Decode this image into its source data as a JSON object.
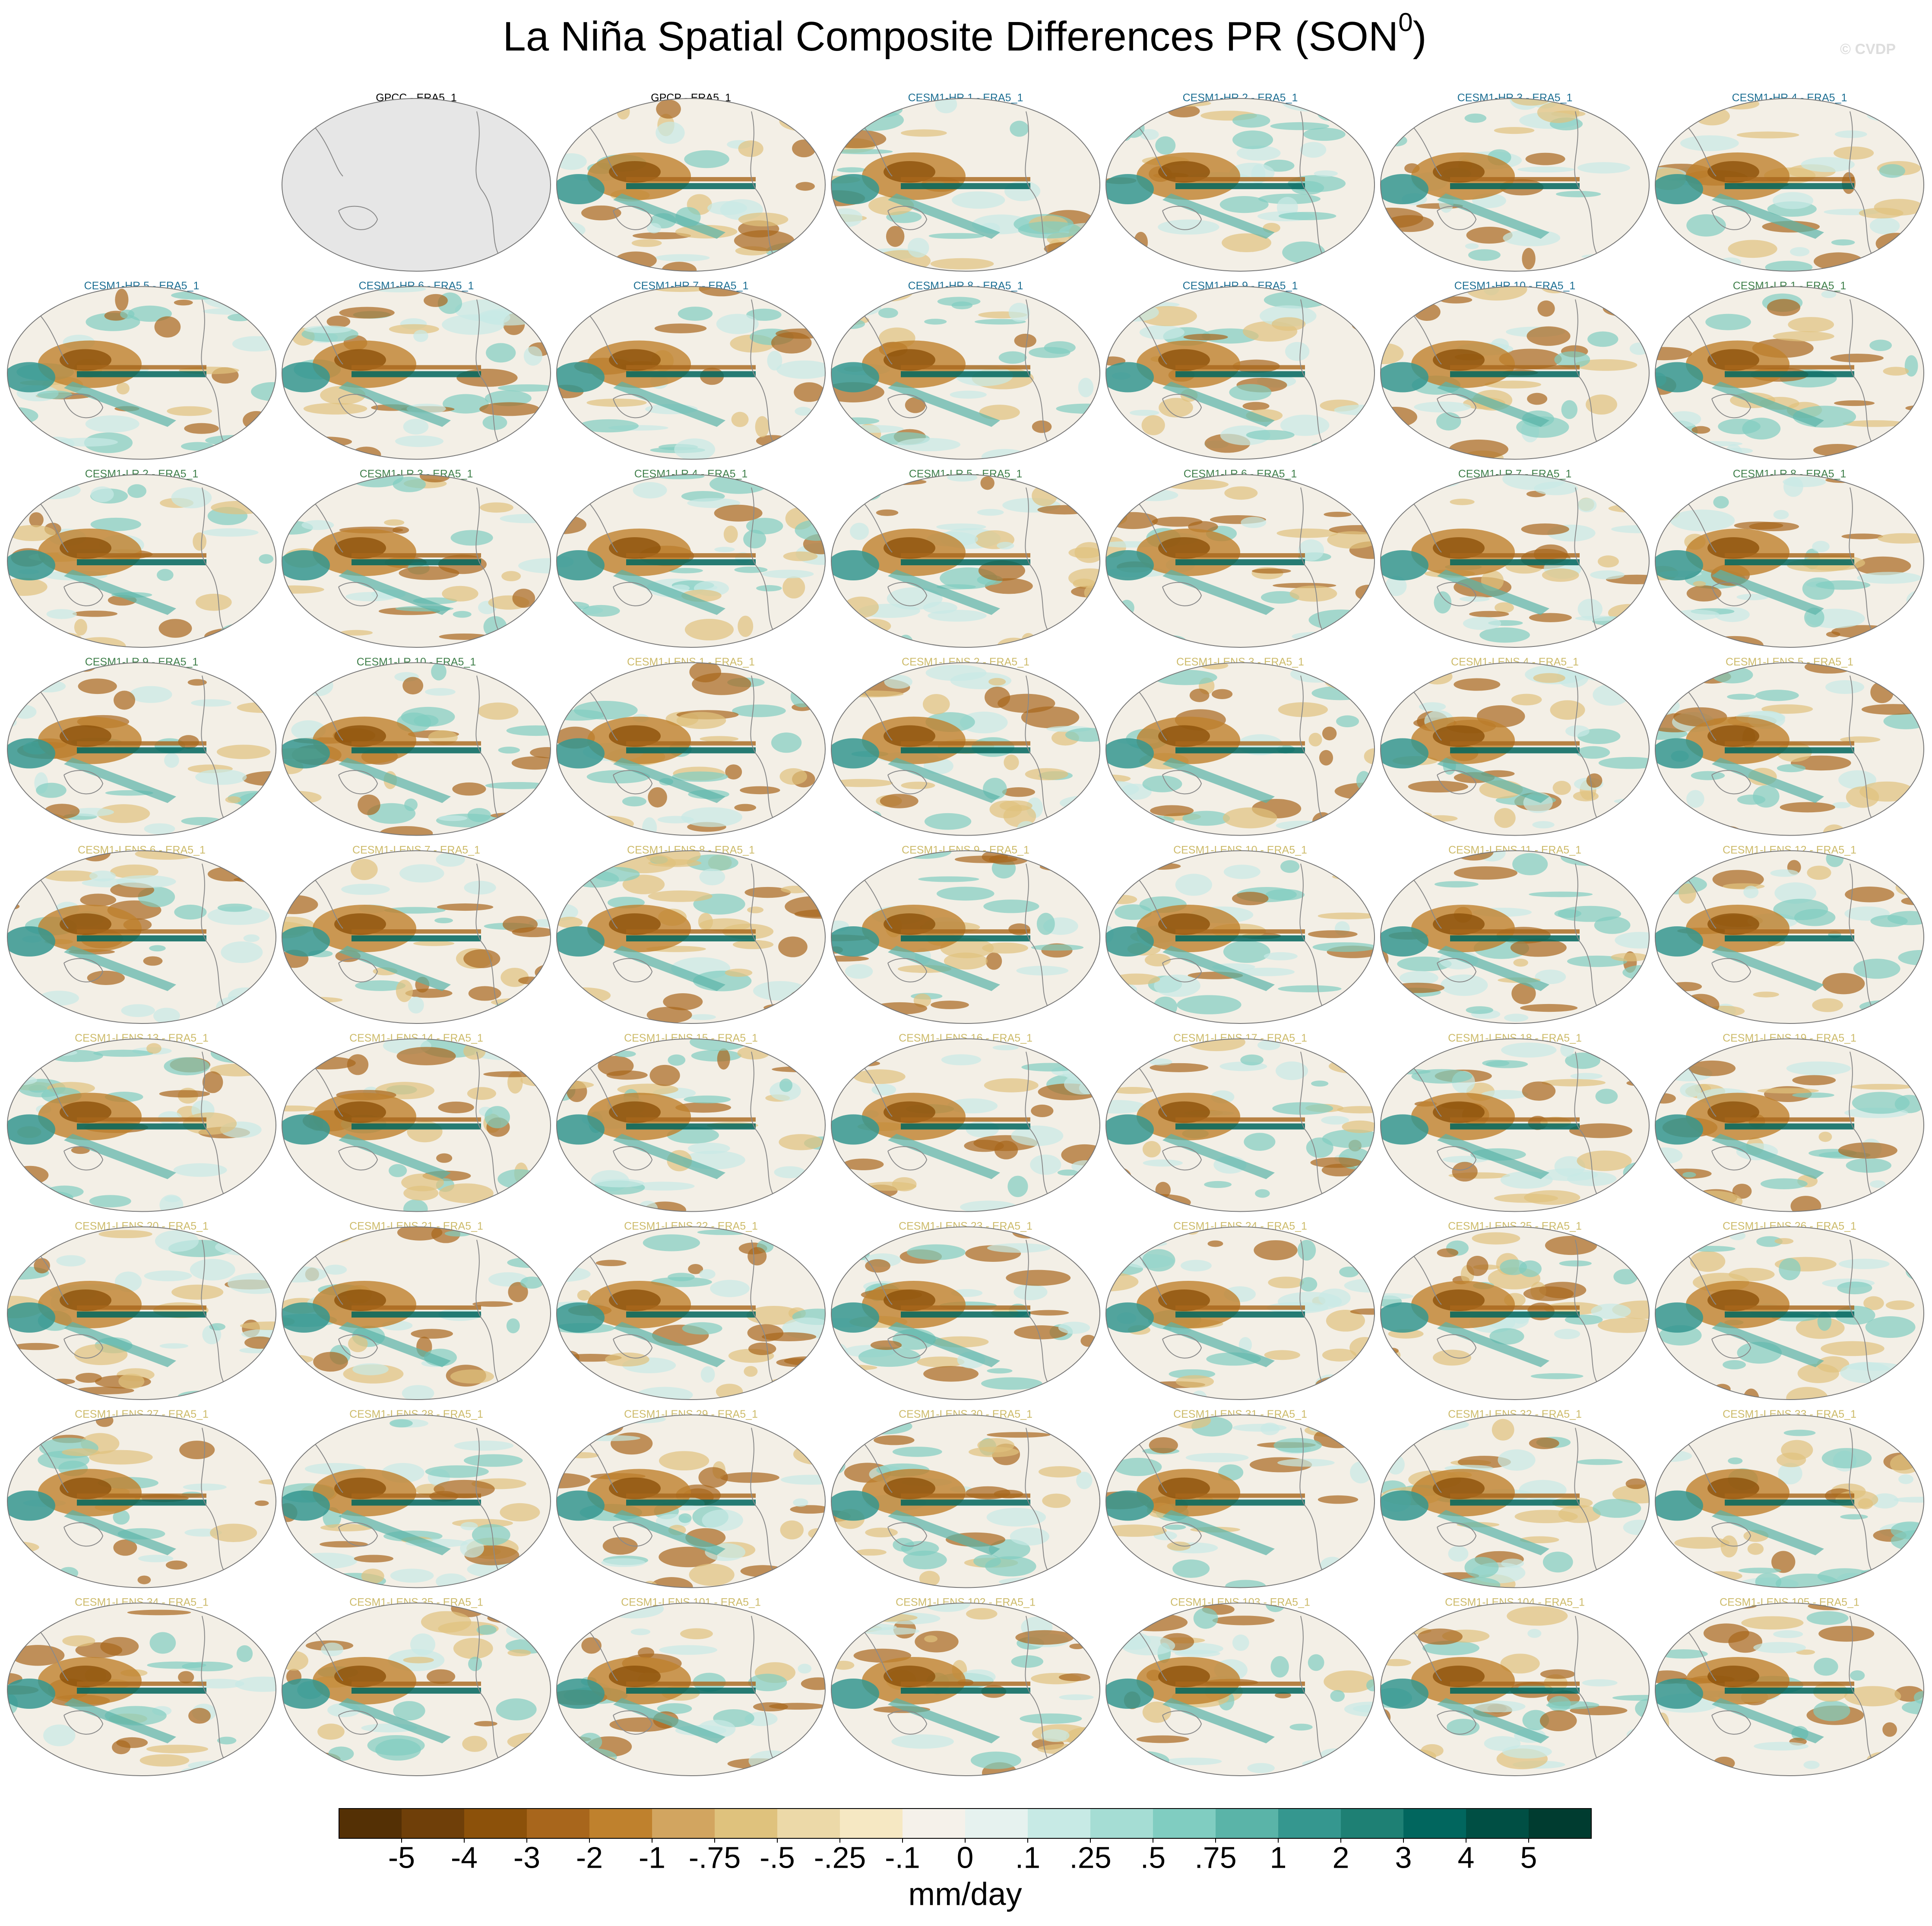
{
  "chart_data": {
    "type": "map-panels",
    "title": {
      "text": "La Niña Spatial Composite Differences PR (SON",
      "superscript": "0",
      "suffix": ")"
    },
    "watermark": "© CVDP",
    "panels": [
      {
        "title": "GPCC - ERA5_1",
        "title_color": "#000000",
        "map_color": "#e6e6e6"
      },
      {
        "title": "GPCP - ERA5_1",
        "title_color": "#000000",
        "map_color": "#f3efe6"
      },
      {
        "title": "CESM1-HR 1 - ERA5_1",
        "title_color": "#1d6f93",
        "map_color": "#f3efe6"
      },
      {
        "title": "CESM1-HR 2 - ERA5_1",
        "title_color": "#1d6f93",
        "map_color": "#f3efe6"
      },
      {
        "title": "CESM1-HR 3 - ERA5_1",
        "title_color": "#1d6f93",
        "map_color": "#f3efe6"
      },
      {
        "title": "CESM1-HR 4 - ERA5_1",
        "title_color": "#1d6f93",
        "map_color": "#f3efe6"
      },
      {
        "title": "CESM1-HR 5 - ERA5_1",
        "title_color": "#1d6f93",
        "map_color": "#f3efe6"
      },
      {
        "title": "CESM1-HR 6 - ERA5_1",
        "title_color": "#1d6f93",
        "map_color": "#f3efe6"
      },
      {
        "title": "CESM1-HR 7 - ERA5_1",
        "title_color": "#1d6f93",
        "map_color": "#f3efe6"
      },
      {
        "title": "CESM1-HR 8 - ERA5_1",
        "title_color": "#1d6f93",
        "map_color": "#f3efe6"
      },
      {
        "title": "CESM1-HR 9 - ERA5_1",
        "title_color": "#1d6f93",
        "map_color": "#f3efe6"
      },
      {
        "title": "CESM1-HR 10 - ERA5_1",
        "title_color": "#1d6f93",
        "map_color": "#f3efe6"
      },
      {
        "title": "CESM1-LR 1 - ERA5_1",
        "title_color": "#3f7f4a",
        "map_color": "#f3efe6"
      },
      {
        "title": "CESM1-LR 2 - ERA5_1",
        "title_color": "#3f7f4a",
        "map_color": "#f3efe6"
      },
      {
        "title": "CESM1-LR 3 - ERA5_1",
        "title_color": "#3f7f4a",
        "map_color": "#f3efe6"
      },
      {
        "title": "CESM1-LR 4 - ERA5_1",
        "title_color": "#3f7f4a",
        "map_color": "#f3efe6"
      },
      {
        "title": "CESM1-LR 5 - ERA5_1",
        "title_color": "#3f7f4a",
        "map_color": "#f3efe6"
      },
      {
        "title": "CESM1-LR 6 - ERA5_1",
        "title_color": "#3f7f4a",
        "map_color": "#f3efe6"
      },
      {
        "title": "CESM1-LR 7 - ERA5_1",
        "title_color": "#3f7f4a",
        "map_color": "#f3efe6"
      },
      {
        "title": "CESM1-LR 8 - ERA5_1",
        "title_color": "#3f7f4a",
        "map_color": "#f3efe6"
      },
      {
        "title": "CESM1-LR 9 - ERA5_1",
        "title_color": "#3f7f4a",
        "map_color": "#f3efe6"
      },
      {
        "title": "CESM1-LR 10 - ERA5_1",
        "title_color": "#3f7f4a",
        "map_color": "#f3efe6"
      },
      {
        "title": "CESM1-LENS 1 - ERA5_1",
        "title_color": "#cdbb6a",
        "map_color": "#f3efe6"
      },
      {
        "title": "CESM1-LENS 2 - ERA5_1",
        "title_color": "#cdbb6a",
        "map_color": "#f3efe6"
      },
      {
        "title": "CESM1-LENS 3 - ERA5_1",
        "title_color": "#cdbb6a",
        "map_color": "#f3efe6"
      },
      {
        "title": "CESM1-LENS 4 - ERA5_1",
        "title_color": "#cdbb6a",
        "map_color": "#f3efe6"
      },
      {
        "title": "CESM1-LENS 5 - ERA5_1",
        "title_color": "#cdbb6a",
        "map_color": "#f3efe6"
      },
      {
        "title": "CESM1-LENS 6 - ERA5_1",
        "title_color": "#cdbb6a",
        "map_color": "#f3efe6"
      },
      {
        "title": "CESM1-LENS 7 - ERA5_1",
        "title_color": "#cdbb6a",
        "map_color": "#f3efe6"
      },
      {
        "title": "CESM1-LENS 8 - ERA5_1",
        "title_color": "#cdbb6a",
        "map_color": "#f3efe6"
      },
      {
        "title": "CESM1-LENS 9 - ERA5_1",
        "title_color": "#cdbb6a",
        "map_color": "#f3efe6"
      },
      {
        "title": "CESM1-LENS 10 - ERA5_1",
        "title_color": "#cdbb6a",
        "map_color": "#f3efe6"
      },
      {
        "title": "CESM1-LENS 11 - ERA5_1",
        "title_color": "#cdbb6a",
        "map_color": "#f3efe6"
      },
      {
        "title": "CESM1-LENS 12 - ERA5_1",
        "title_color": "#cdbb6a",
        "map_color": "#f3efe6"
      },
      {
        "title": "CESM1-LENS 13 - ERA5_1",
        "title_color": "#cdbb6a",
        "map_color": "#f3efe6"
      },
      {
        "title": "CESM1-LENS 14 - ERA5_1",
        "title_color": "#cdbb6a",
        "map_color": "#f3efe6"
      },
      {
        "title": "CESM1-LENS 15 - ERA5_1",
        "title_color": "#cdbb6a",
        "map_color": "#f3efe6"
      },
      {
        "title": "CESM1-LENS 16 - ERA5_1",
        "title_color": "#cdbb6a",
        "map_color": "#f3efe6"
      },
      {
        "title": "CESM1-LENS 17 - ERA5_1",
        "title_color": "#cdbb6a",
        "map_color": "#f3efe6"
      },
      {
        "title": "CESM1-LENS 18 - ERA5_1",
        "title_color": "#cdbb6a",
        "map_color": "#f3efe6"
      },
      {
        "title": "CESM1-LENS 19 - ERA5_1",
        "title_color": "#cdbb6a",
        "map_color": "#f3efe6"
      },
      {
        "title": "CESM1-LENS 20 - ERA5_1",
        "title_color": "#cdbb6a",
        "map_color": "#f3efe6"
      },
      {
        "title": "CESM1-LENS 21 - ERA5_1",
        "title_color": "#cdbb6a",
        "map_color": "#f3efe6"
      },
      {
        "title": "CESM1-LENS 22 - ERA5_1",
        "title_color": "#cdbb6a",
        "map_color": "#f3efe6"
      },
      {
        "title": "CESM1-LENS 23 - ERA5_1",
        "title_color": "#cdbb6a",
        "map_color": "#f3efe6"
      },
      {
        "title": "CESM1-LENS 24 - ERA5_1",
        "title_color": "#cdbb6a",
        "map_color": "#f3efe6"
      },
      {
        "title": "CESM1-LENS 25 - ERA5_1",
        "title_color": "#cdbb6a",
        "map_color": "#f3efe6"
      },
      {
        "title": "CESM1-LENS 26 - ERA5_1",
        "title_color": "#cdbb6a",
        "map_color": "#f3efe6"
      },
      {
        "title": "CESM1-LENS 27 - ERA5_1",
        "title_color": "#cdbb6a",
        "map_color": "#f3efe6"
      },
      {
        "title": "CESM1-LENS 28 - ERA5_1",
        "title_color": "#cdbb6a",
        "map_color": "#f3efe6"
      },
      {
        "title": "CESM1-LENS 29 - ERA5_1",
        "title_color": "#cdbb6a",
        "map_color": "#f3efe6"
      },
      {
        "title": "CESM1-LENS 30 - ERA5_1",
        "title_color": "#cdbb6a",
        "map_color": "#f3efe6"
      },
      {
        "title": "CESM1-LENS 31 - ERA5_1",
        "title_color": "#cdbb6a",
        "map_color": "#f3efe6"
      },
      {
        "title": "CESM1-LENS 32 - ERA5_1",
        "title_color": "#cdbb6a",
        "map_color": "#f3efe6"
      },
      {
        "title": "CESM1-LENS 33 - ERA5_1",
        "title_color": "#cdbb6a",
        "map_color": "#f3efe6"
      },
      {
        "title": "CESM1-LENS 34 - ERA5_1",
        "title_color": "#cdbb6a",
        "map_color": "#f3efe6"
      },
      {
        "title": "CESM1-LENS 35 - ERA5_1",
        "title_color": "#cdbb6a",
        "map_color": "#f3efe6"
      },
      {
        "title": "CESM1-LENS 101 - ERA5_1",
        "title_color": "#cdbb6a",
        "map_color": "#f3efe6"
      },
      {
        "title": "CESM1-LENS 102 - ERA5_1",
        "title_color": "#cdbb6a",
        "map_color": "#f3efe6"
      },
      {
        "title": "CESM1-LENS 103 - ERA5_1",
        "title_color": "#cdbb6a",
        "map_color": "#f3efe6"
      },
      {
        "title": "CESM1-LENS 104 - ERA5_1",
        "title_color": "#cdbb6a",
        "map_color": "#f3efe6"
      },
      {
        "title": "CESM1-LENS 105 - ERA5_1",
        "title_color": "#cdbb6a",
        "map_color": "#f3efe6"
      }
    ],
    "colorbar": {
      "label": "mm/day",
      "colors": [
        "#543005",
        "#6f3f09",
        "#8c510a",
        "#a8661c",
        "#bf812d",
        "#d2a560",
        "#dfc27d",
        "#ecd9a8",
        "#f6e8c3",
        "#f5f1ea",
        "#e6f2ef",
        "#c7eae5",
        "#a5ddd4",
        "#80cdc1",
        "#5ab4a8",
        "#35978f",
        "#1e8074",
        "#01665e",
        "#004f44",
        "#003c30"
      ],
      "ticks": [
        -5,
        -4,
        -3,
        -2,
        -1,
        {
          "value": -0.75,
          "label": "-.75"
        },
        {
          "value": -0.5,
          "label": "-.5"
        },
        {
          "value": -0.25,
          "label": "-.25"
        },
        {
          "value": -0.1,
          "label": "-.1"
        },
        0,
        {
          "value": 0.1,
          "label": ".1"
        },
        {
          "value": 0.25,
          "label": ".25"
        },
        {
          "value": 0.5,
          "label": ".5"
        },
        {
          "value": 0.75,
          "label": ".75"
        },
        1,
        2,
        3,
        4,
        5
      ]
    }
  }
}
